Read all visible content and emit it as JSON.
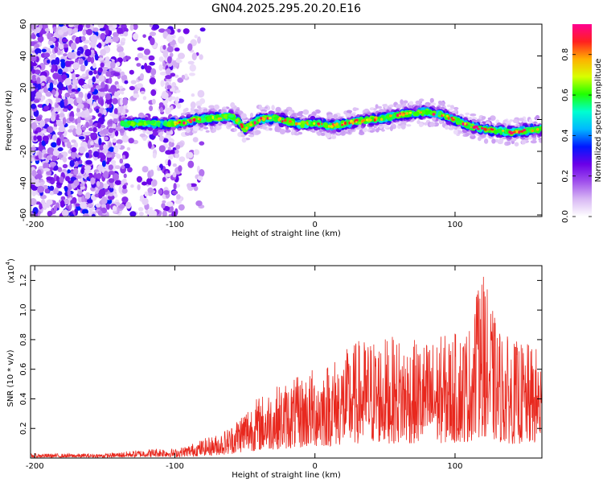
{
  "title": "GN04.2025.295.20.20.E16",
  "chart_data": [
    {
      "type": "heatmap",
      "name": "spectrogram",
      "xlabel": "Height of straight line (km)",
      "ylabel": "Frequency (Hz)",
      "xlim": [
        -203,
        162
      ],
      "ylim": [
        -61,
        60
      ],
      "xticks": [
        -200,
        -100,
        0,
        100
      ],
      "yticks": [
        60,
        40,
        20,
        0,
        -20,
        -40,
        -60
      ],
      "colorbar": {
        "label": "Normalized spectral amplitude",
        "range": [
          0,
          0.95
        ],
        "ticks": [
          0.0,
          0.2,
          0.4,
          0.6,
          0.8
        ],
        "tick_labels": [
          "0.0",
          "0.2",
          "0.4",
          "0.6",
          "0.8"
        ],
        "colors": [
          "#ffffff",
          "#d8b8f4",
          "#a050ec",
          "#6a00e8",
          "#0018ff",
          "#00b8ff",
          "#00ffd0",
          "#20ff00",
          "#d8ff00",
          "#ffb000",
          "#ff2020",
          "#ff0090"
        ]
      },
      "ridge": {
        "x": [
          -135,
          -125,
          -110,
          -95,
          -85,
          -70,
          -60,
          -55,
          -50,
          -45,
          -40,
          -30,
          -20,
          -10,
          0,
          10,
          20,
          30,
          40,
          50,
          60,
          70,
          80,
          90,
          100,
          110,
          120,
          130,
          140,
          150,
          160
        ],
        "y": [
          -3,
          -2,
          -3,
          -2,
          0,
          1,
          2,
          -1,
          -6,
          -3,
          0,
          1,
          -1,
          -3,
          -2,
          -4,
          -3,
          -1,
          0,
          1,
          3,
          4,
          5,
          3,
          0,
          -4,
          -6,
          -7,
          -8,
          -7,
          -6
        ]
      },
      "noise_region_x": [
        -203,
        -80
      ]
    },
    {
      "type": "line",
      "name": "snr",
      "xlabel": "Height of straight line (km)",
      "ylabel": "SNR (10 * v/v)",
      "y_multiplier_label": "(x10",
      "y_multiplier_exp": "4",
      "y_multiplier_close": ")",
      "xlim": [
        -203,
        162
      ],
      "ylim": [
        0,
        1.3
      ],
      "xticks": [
        -200,
        -100,
        0,
        100
      ],
      "yticks": [
        0.2,
        0.4,
        0.6,
        0.8,
        1.0,
        1.2
      ],
      "ytick_labels": [
        "0.2",
        "0.4",
        "0.6",
        "0.8",
        "1.0",
        "1.2"
      ],
      "color": "#e8281e",
      "envelope": {
        "x": [
          -203,
          -150,
          -130,
          -110,
          -100,
          -90,
          -80,
          -70,
          -60,
          -50,
          -40,
          -30,
          -20,
          -10,
          0,
          10,
          20,
          30,
          40,
          50,
          60,
          70,
          80,
          90,
          100,
          110,
          115,
          120,
          130,
          140,
          150,
          162
        ],
        "y": [
          0.03,
          0.03,
          0.05,
          0.07,
          0.06,
          0.09,
          0.13,
          0.16,
          0.22,
          0.35,
          0.42,
          0.48,
          0.52,
          0.56,
          0.62,
          0.66,
          0.72,
          0.8,
          0.82,
          0.82,
          0.82,
          0.8,
          0.8,
          0.83,
          0.85,
          0.9,
          1.1,
          1.25,
          0.9,
          0.8,
          0.78,
          0.74
        ]
      }
    }
  ]
}
